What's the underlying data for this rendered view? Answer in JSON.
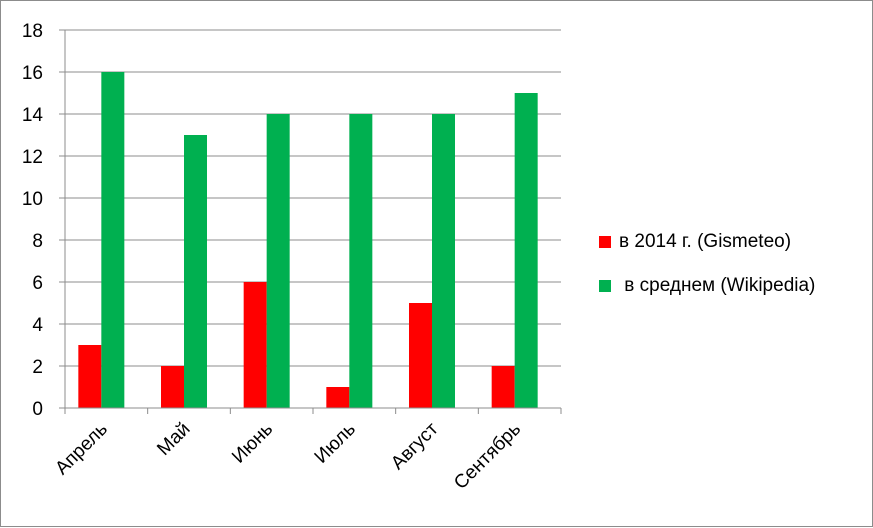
{
  "chart_data": {
    "type": "bar",
    "title": "",
    "xlabel": "",
    "ylabel": "",
    "categories": [
      "Апрель",
      "Май",
      "Июнь",
      "Июль",
      "Август",
      "Сентябрь"
    ],
    "series": [
      {
        "name": "в 2014 г. (Gismeteo)",
        "color": "#ff0000",
        "values": [
          3,
          2,
          6,
          1,
          5,
          2
        ]
      },
      {
        "name": " в среднем (Wikipedia)",
        "color": "#00b050",
        "values": [
          16,
          13,
          14,
          14,
          14,
          15
        ]
      }
    ],
    "ylim": [
      0,
      18
    ],
    "yticks": [
      0,
      2,
      4,
      6,
      8,
      10,
      12,
      14,
      16,
      18
    ],
    "grid": true,
    "legend_position": "right"
  }
}
